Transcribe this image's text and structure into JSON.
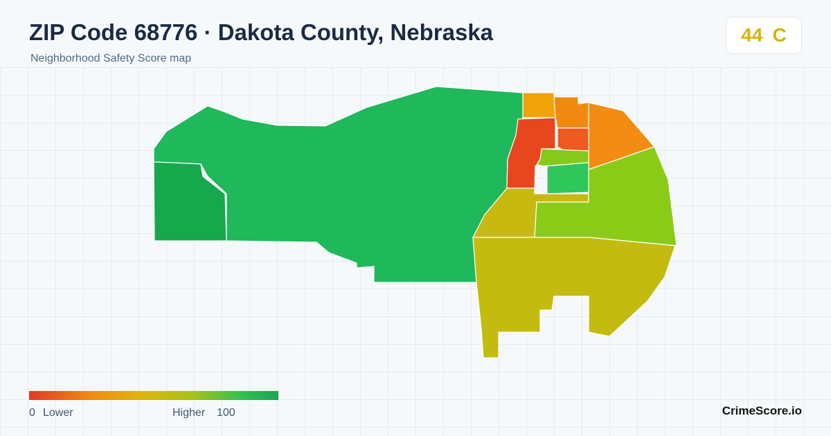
{
  "header": {
    "title": "ZIP Code 68776 · Dakota County, Nebraska",
    "subtitle": "Neighborhood Safety Score map"
  },
  "score": {
    "value": "44",
    "grade": "C"
  },
  "legend": {
    "min": "0",
    "low_label": "Lower",
    "high_label": "Higher",
    "max": "100"
  },
  "brand": "CrimeScore.io"
}
